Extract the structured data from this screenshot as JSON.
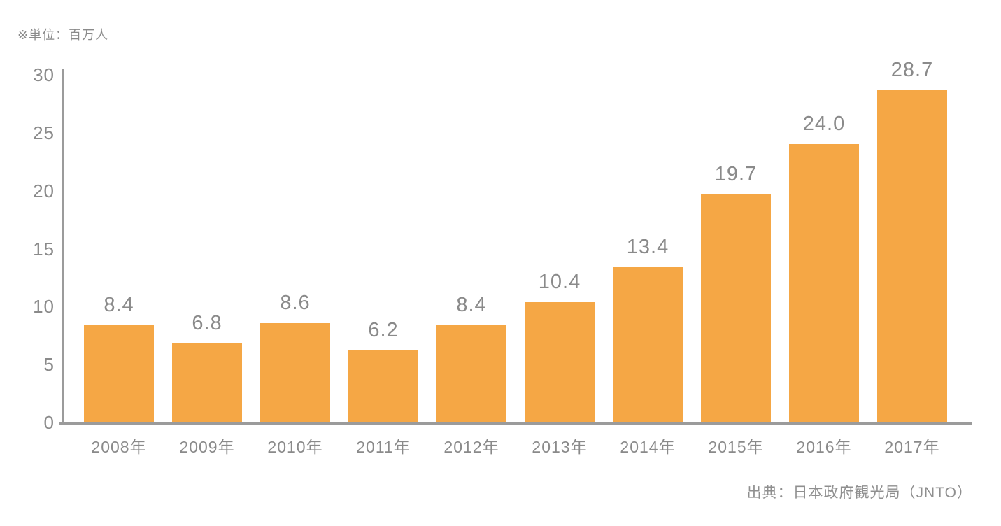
{
  "unit_label": "※単位：百万人",
  "source_label": "出典：日本政府観光局（JNTO）",
  "chart_data": {
    "type": "bar",
    "title": "",
    "xlabel": "",
    "ylabel": "百万人",
    "categories": [
      "2008年",
      "2009年",
      "2010年",
      "2011年",
      "2012年",
      "2013年",
      "2014年",
      "2015年",
      "2016年",
      "2017年"
    ],
    "values": [
      8.4,
      6.8,
      8.6,
      6.2,
      8.4,
      10.4,
      13.4,
      19.7,
      24.0,
      28.7
    ],
    "value_labels": [
      "8.4",
      "6.8",
      "8.6",
      "6.2",
      "8.4",
      "10.4",
      "13.4",
      "19.7",
      "24.0",
      "28.7"
    ],
    "ylim": [
      0,
      30
    ],
    "yticks": [
      0,
      5,
      10,
      15,
      20,
      25,
      30
    ],
    "grid": false,
    "legend_position": "none",
    "bar_color": "#F5A745",
    "text_color": "#8A8A8A",
    "axis_color": "#9B9B9B"
  }
}
